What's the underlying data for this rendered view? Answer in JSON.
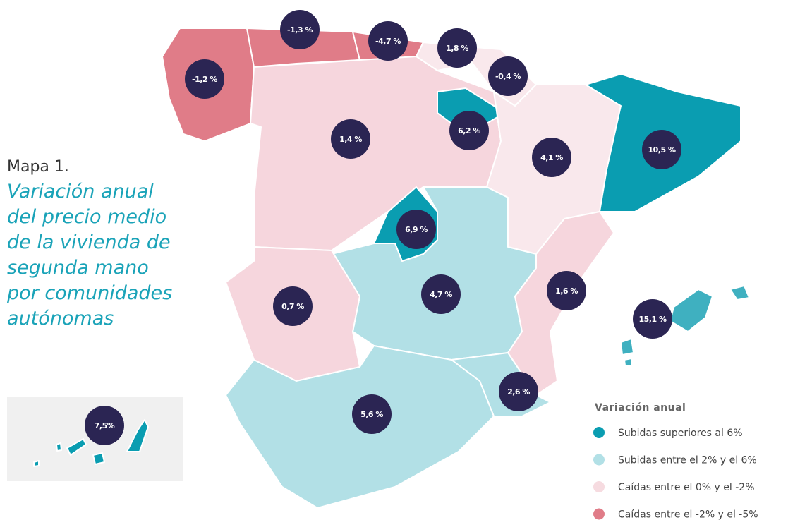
{
  "title": "Mapa 1.",
  "subtitle_lines": [
    "Variación anual",
    "del precio medio",
    "de la vivienda de",
    "segunda mano",
    "por comunidades",
    "autónomas"
  ],
  "legend": {
    "title": "Variación anual",
    "items": [
      {
        "label": "Subidas superiores al 6%",
        "color": "#0a9db1"
      },
      {
        "label": "Subidas entre el 2% y el 6%",
        "color": "#b2e0e6"
      },
      {
        "label": "Caídas entre el 0% y el -2%",
        "color": "#f6dbe0"
      },
      {
        "label": "Caídas entre el -2% y el -5%",
        "color": "#e07c88"
      }
    ]
  },
  "regions": [
    {
      "label": "-1,2 %"
    },
    {
      "label": "-1,3 %"
    },
    {
      "label": "-4,7 %"
    },
    {
      "label": "1,8 %"
    },
    {
      "label": "-0,4 %"
    },
    {
      "label": "6,2 %"
    },
    {
      "label": "1,4 %"
    },
    {
      "label": "4,1 %"
    },
    {
      "label": "10,5 %"
    },
    {
      "label": "6,9 %"
    },
    {
      "label": "0,7 %"
    },
    {
      "label": "4,7 %"
    },
    {
      "label": "1,6 %"
    },
    {
      "label": "15,1 %"
    },
    {
      "label": "2,6 %"
    },
    {
      "label": "5,6 %"
    },
    {
      "label": "7,5%"
    }
  ]
}
